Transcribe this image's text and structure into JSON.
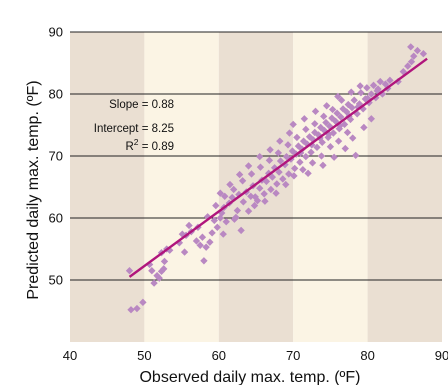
{
  "chart_data": {
    "type": "scatter",
    "xlabel": "Observed daily max. temp. (ºF)",
    "ylabel": "Predicted daily max. temp. (ºF)",
    "xlim": [
      40,
      90
    ],
    "ylim": [
      40,
      90
    ],
    "x_ticks": [
      "40",
      "50",
      "60",
      "70",
      "80",
      "90"
    ],
    "y_ticks": [
      "50",
      "60",
      "70",
      "80",
      "90"
    ],
    "grid": "horizontal lines at y ticks; alternating shaded vertical bands",
    "colors": {
      "points": "#b988c2",
      "fit_line": "#b0157c",
      "band_dark": "#eadfd2",
      "band_light": "#fbf4e4",
      "grid": "#222222"
    },
    "annotations": {
      "slope": "Slope = 0.88",
      "intercept": "Intercept = 8.25",
      "r2_prefix": "R",
      "r2_exp": "2",
      "r2_value": " = 0.89"
    },
    "fit_line": {
      "x": [
        48,
        88
      ],
      "y": [
        50.5,
        85.7
      ]
    },
    "series": [
      {
        "points": [
          [
            48.0,
            51.5
          ],
          [
            48.2,
            45.2
          ],
          [
            49.0,
            45.4
          ],
          [
            49.8,
            46.4
          ],
          [
            51.0,
            51.5
          ],
          [
            51.3,
            49.5
          ],
          [
            51.7,
            50.7
          ],
          [
            52.0,
            50.3
          ],
          [
            52.3,
            51.4
          ],
          [
            52.6,
            51.8
          ],
          [
            52.3,
            54.4
          ],
          [
            52.7,
            53.0
          ],
          [
            53.4,
            54.8
          ],
          [
            54.7,
            56.0
          ],
          [
            55.1,
            57.4
          ],
          [
            55.6,
            57.2
          ],
          [
            56.3,
            57.8
          ],
          [
            57.0,
            56.3
          ],
          [
            57.2,
            58.5
          ],
          [
            57.5,
            55.6
          ],
          [
            58.0,
            53.1
          ],
          [
            58.3,
            55.3
          ],
          [
            58.8,
            56.1
          ],
          [
            59.1,
            57.6
          ],
          [
            59.4,
            59.6
          ],
          [
            59.8,
            58.5
          ],
          [
            60.2,
            60.0
          ],
          [
            60.4,
            60.8
          ],
          [
            60.7,
            61.7
          ],
          [
            61.0,
            59.4
          ],
          [
            61.4,
            62.4
          ],
          [
            61.8,
            63.3
          ],
          [
            62.1,
            59.8
          ],
          [
            62.5,
            61.2
          ],
          [
            62.7,
            63.8
          ],
          [
            63.0,
            58.0
          ],
          [
            63.3,
            62.6
          ],
          [
            63.7,
            64.2
          ],
          [
            64.0,
            61.1
          ],
          [
            64.3,
            63.5
          ],
          [
            64.6,
            65.2
          ],
          [
            64.9,
            63.4
          ],
          [
            65.2,
            62.8
          ],
          [
            65.5,
            64.8
          ],
          [
            65.8,
            66.1
          ],
          [
            66.1,
            63.9
          ],
          [
            66.4,
            65.9
          ],
          [
            66.7,
            67.2
          ],
          [
            67.0,
            64.6
          ],
          [
            67.2,
            66.6
          ],
          [
            67.5,
            68.1
          ],
          [
            67.8,
            65.5
          ],
          [
            68.1,
            67.4
          ],
          [
            68.3,
            69.2
          ],
          [
            68.6,
            66.3
          ],
          [
            68.9,
            68.6
          ],
          [
            69.1,
            69.9
          ],
          [
            69.4,
            67.1
          ],
          [
            69.7,
            69.5
          ],
          [
            69.9,
            70.8
          ],
          [
            70.2,
            68.0
          ],
          [
            70.4,
            70.3
          ],
          [
            70.7,
            71.6
          ],
          [
            70.9,
            69.0
          ],
          [
            71.2,
            71.1
          ],
          [
            71.4,
            72.4
          ],
          [
            71.7,
            69.9
          ],
          [
            71.9,
            71.9
          ],
          [
            72.2,
            73.1
          ],
          [
            72.4,
            70.6
          ],
          [
            72.7,
            72.6
          ],
          [
            72.9,
            73.8
          ],
          [
            73.2,
            71.4
          ],
          [
            73.4,
            73.4
          ],
          [
            73.7,
            74.6
          ],
          [
            73.9,
            72.2
          ],
          [
            74.2,
            74.1
          ],
          [
            74.4,
            75.4
          ],
          [
            74.7,
            73.0
          ],
          [
            74.9,
            74.8
          ],
          [
            75.2,
            76.1
          ],
          [
            75.4,
            73.7
          ],
          [
            75.7,
            75.6
          ],
          [
            75.9,
            76.9
          ],
          [
            76.2,
            74.4
          ],
          [
            76.4,
            76.3
          ],
          [
            76.7,
            77.6
          ],
          [
            76.9,
            75.1
          ],
          [
            77.2,
            77.1
          ],
          [
            77.4,
            78.3
          ],
          [
            77.7,
            75.9
          ],
          [
            77.9,
            77.8
          ],
          [
            78.2,
            79.0
          ],
          [
            78.4,
            70.1
          ],
          [
            78.6,
            76.8
          ],
          [
            78.9,
            78.4
          ],
          [
            79.1,
            80.2
          ],
          [
            79.4,
            77.6
          ],
          [
            79.7,
            79.2
          ],
          [
            79.9,
            81.0
          ],
          [
            80.2,
            78.6
          ],
          [
            80.5,
            80.0
          ],
          [
            80.8,
            81.4
          ],
          [
            81.1,
            79.4
          ],
          [
            81.4,
            80.8
          ],
          [
            81.7,
            82.0
          ],
          [
            82.0,
            80.0
          ],
          [
            82.4,
            81.6
          ],
          [
            83.0,
            82.2
          ],
          [
            84.1,
            82.0
          ],
          [
            84.8,
            83.6
          ],
          [
            85.4,
            84.5
          ],
          [
            85.8,
            87.6
          ],
          [
            86.2,
            86.1
          ],
          [
            86.7,
            87.0
          ],
          [
            87.5,
            86.5
          ],
          [
            85.9,
            85.2
          ],
          [
            50.7,
            52.5
          ],
          [
            53.0,
            55.0
          ],
          [
            56.0,
            58.8
          ],
          [
            58.5,
            60.2
          ],
          [
            59.6,
            62.0
          ],
          [
            60.8,
            63.5
          ],
          [
            62.0,
            64.6
          ],
          [
            63.2,
            66.0
          ],
          [
            64.4,
            67.1
          ],
          [
            65.6,
            68.2
          ],
          [
            66.8,
            69.3
          ],
          [
            68.0,
            70.5
          ],
          [
            69.3,
            71.8
          ],
          [
            70.5,
            73.0
          ],
          [
            71.7,
            74.3
          ],
          [
            72.9,
            75.2
          ],
          [
            74.1,
            76.4
          ],
          [
            75.3,
            77.5
          ],
          [
            76.5,
            79.0
          ],
          [
            77.8,
            80.3
          ],
          [
            79.0,
            81.3
          ],
          [
            55.4,
            54.5
          ],
          [
            57.8,
            56.9
          ],
          [
            60.6,
            57.4
          ],
          [
            62.3,
            60.1
          ],
          [
            64.8,
            62.0
          ],
          [
            66.2,
            62.7
          ],
          [
            67.7,
            64.0
          ],
          [
            69.0,
            65.4
          ],
          [
            70.1,
            66.8
          ],
          [
            71.3,
            67.8
          ],
          [
            72.6,
            68.9
          ],
          [
            73.8,
            70.0
          ],
          [
            75.0,
            71.5
          ],
          [
            76.1,
            72.4
          ],
          [
            77.3,
            73.8
          ],
          [
            70.0,
            75.1
          ],
          [
            71.5,
            76.0
          ],
          [
            73.0,
            77.2
          ],
          [
            74.5,
            78.1
          ],
          [
            76.0,
            79.6
          ],
          [
            69.5,
            73.7
          ],
          [
            68.2,
            72.4
          ],
          [
            66.9,
            71.0
          ],
          [
            65.5,
            69.9
          ],
          [
            64.0,
            68.4
          ],
          [
            62.8,
            67.0
          ],
          [
            61.5,
            65.4
          ],
          [
            60.2,
            64.0
          ],
          [
            72.0,
            67.2
          ],
          [
            74.0,
            68.5
          ],
          [
            75.5,
            69.8
          ],
          [
            77.0,
            71.2
          ],
          [
            78.0,
            72.9
          ],
          [
            79.5,
            74.6
          ],
          [
            80.5,
            76.0
          ],
          [
            71.0,
            70.5
          ],
          [
            72.5,
            71.8
          ],
          [
            73.6,
            72.9
          ],
          [
            74.8,
            73.5
          ],
          [
            76.3,
            74.9
          ],
          [
            77.5,
            76.4
          ],
          [
            78.7,
            77.9
          ],
          [
            80.0,
            79.3
          ],
          [
            81.3,
            80.5
          ],
          [
            82.7,
            80.9
          ]
        ]
      }
    ]
  }
}
